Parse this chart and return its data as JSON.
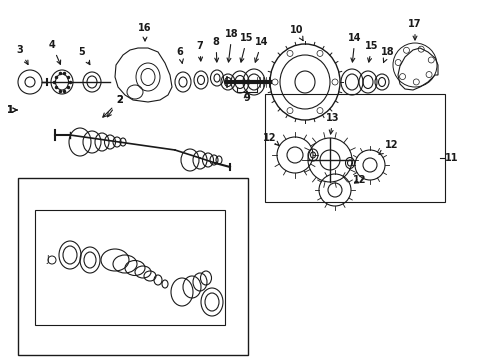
{
  "bg_color": "#ffffff",
  "line_color": "#1a1a1a",
  "fig_width": 4.9,
  "fig_height": 3.6,
  "dpi": 100,
  "font_size": 7.0,
  "font_weight": "bold",
  "font_family": "DejaVu Sans"
}
